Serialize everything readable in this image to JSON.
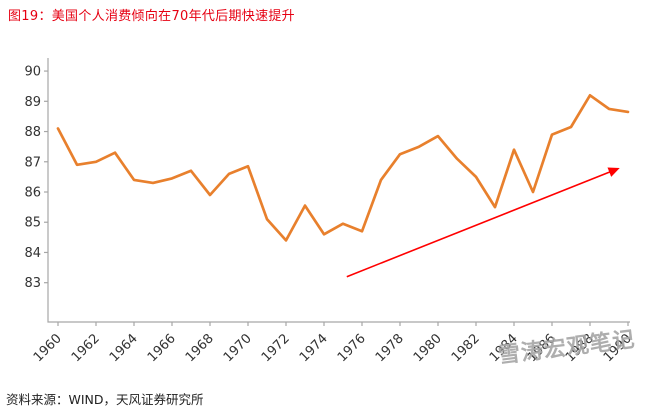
{
  "page": {
    "source_note": "资料来源：WIND，天风证券研究所",
    "watermark": "雪涛宏观笔记"
  },
  "colors": {
    "title": "#E60012",
    "line": "#E8802D",
    "arrow": "#FF0000",
    "axis": "#A6A6A6",
    "tick_label": "#333333",
    "watermark": "#A6A6A6",
    "source": "#222222",
    "background": "#FFFFFF"
  },
  "chart_data": {
    "type": "line",
    "title": "图19：美国个人消费倾向在70年代后期快速提升",
    "x": [
      1960,
      1961,
      1962,
      1963,
      1964,
      1965,
      1966,
      1967,
      1968,
      1969,
      1970,
      1971,
      1972,
      1973,
      1974,
      1975,
      1976,
      1977,
      1978,
      1979,
      1980,
      1981,
      1982,
      1983,
      1984,
      1985,
      1986,
      1987,
      1988,
      1989,
      1990
    ],
    "series": [
      {
        "name": "美国个人消费倾向",
        "values": [
          88.1,
          86.9,
          87.0,
          87.3,
          86.4,
          86.3,
          86.45,
          86.7,
          85.9,
          86.6,
          86.85,
          85.1,
          84.4,
          85.55,
          84.6,
          84.95,
          84.7,
          86.4,
          87.25,
          87.5,
          87.85,
          87.1,
          86.5,
          85.5,
          87.4,
          86.0,
          87.9,
          88.15,
          89.2,
          88.75,
          88.65
        ]
      }
    ],
    "yticks": [
      83,
      84,
      85,
      86,
      87,
      88,
      89,
      90
    ],
    "ylim": [
      81.7,
      90.3
    ],
    "xtick_step": 2,
    "xlabel": "",
    "ylabel": "",
    "grid": false,
    "legend": "none",
    "annotation": {
      "type": "arrow",
      "from_x": 1975.2,
      "from_y": 83.2,
      "to_x": 1989.4,
      "to_y": 86.75
    }
  }
}
